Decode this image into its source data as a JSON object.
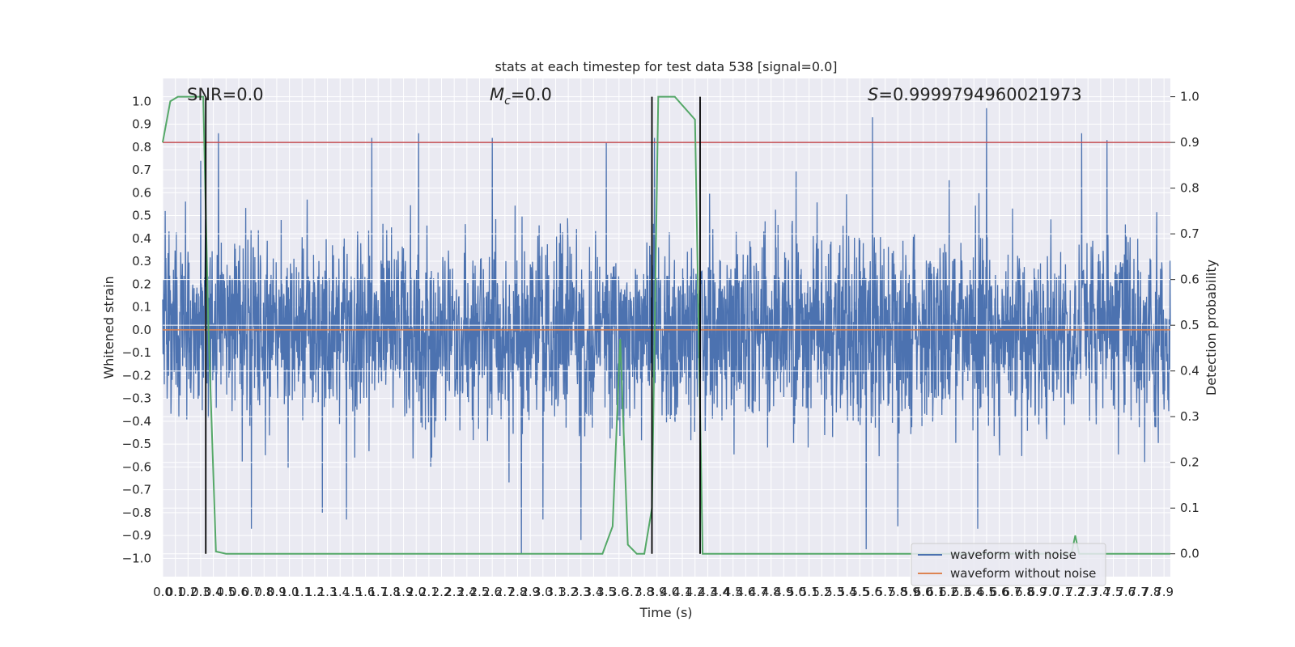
{
  "chart_data": {
    "type": "line",
    "title": "stats at each timestep for test data 538 [signal=0.0]",
    "xlabel": "Time (s)",
    "ylabel": "Whitened strain",
    "y2label": "Detection probability",
    "xlim": [
      0.0,
      7.95
    ],
    "ylim": [
      -1.08,
      1.1
    ],
    "y2lim": [
      -0.05,
      1.04
    ],
    "x_ticks": [
      0.0,
      0.1,
      0.2,
      0.3,
      0.4,
      0.5,
      0.6,
      0.7,
      0.8,
      0.9,
      1.0,
      1.1,
      1.2,
      1.3,
      1.4,
      1.5,
      1.6,
      1.7,
      1.8,
      1.9,
      2.0,
      2.1,
      2.2,
      2.3,
      2.4,
      2.5,
      2.6,
      2.7,
      2.8,
      2.9,
      3.0,
      3.1,
      3.2,
      3.3,
      3.4,
      3.5,
      3.6,
      3.7,
      3.8,
      3.9,
      4.0,
      4.1,
      4.2,
      4.3,
      4.4,
      4.5,
      4.6,
      4.7,
      4.8,
      4.9,
      5.0,
      5.1,
      5.2,
      5.3,
      5.4,
      5.5,
      5.6,
      5.7,
      5.8,
      5.9,
      6.0,
      6.1,
      6.2,
      6.3,
      6.4,
      6.5,
      6.6,
      6.7,
      6.8,
      6.9,
      7.0,
      7.1,
      7.2,
      7.3,
      7.4,
      7.5,
      7.6,
      7.7,
      7.8,
      7.9
    ],
    "x_tick_labels": [
      "0.0",
      "0.1",
      "0.2",
      "0.3",
      "0.4",
      "0.5",
      "0.6",
      "0.7",
      "0.8",
      "0.9",
      "1.0",
      "1.1",
      "1.2",
      "1.3",
      "1.4",
      "1.5",
      "1.6",
      "1.7",
      "1.8",
      "1.9",
      "2.0",
      "2.1",
      "2.2",
      "2.3",
      "2.4",
      "2.5",
      "2.6",
      "2.7",
      "2.8",
      "2.9",
      "3.0",
      "3.1",
      "3.2",
      "3.3",
      "3.4",
      "3.5",
      "3.6",
      "3.7",
      "3.8",
      "3.9",
      "4.0",
      "4.1",
      "4.2",
      "4.3",
      "4.4",
      "4.5",
      "4.6",
      "4.7",
      "4.8",
      "4.9",
      "5.0",
      "5.1",
      "5.2",
      "5.3",
      "5.4",
      "5.5",
      "5.6",
      "5.7",
      "5.8",
      "5.9",
      "6.0",
      "6.1",
      "6.2",
      "6.3",
      "6.4",
      "6.5",
      "6.6",
      "6.7",
      "6.8",
      "6.9",
      "7.0",
      "7.1",
      "7.2",
      "7.3",
      "7.4",
      "7.5",
      "7.6",
      "7.7",
      "7.8",
      "7.9"
    ],
    "y_ticks": [
      1.0,
      0.9,
      0.8,
      0.7,
      0.6,
      0.5,
      0.4,
      0.3,
      0.2,
      0.1,
      0.0,
      -0.1,
      -0.2,
      -0.3,
      -0.4,
      -0.5,
      -0.6,
      -0.7,
      -0.8,
      -0.9,
      -1.0
    ],
    "y_tick_labels": [
      "1.0",
      "0.9",
      "0.8",
      "0.7",
      "0.6",
      "0.5",
      "0.4",
      "0.3",
      "0.2",
      "0.1",
      "0.0",
      "−0.1",
      "−0.2",
      "−0.3",
      "−0.4",
      "−0.5",
      "−0.6",
      "−0.7",
      "−0.8",
      "−0.9",
      "−1.0"
    ],
    "y2_ticks": [
      1.0,
      0.9,
      0.8,
      0.7,
      0.6,
      0.5,
      0.4,
      0.3,
      0.2,
      0.1,
      0.0
    ],
    "y2_tick_labels": [
      "1.0",
      "0.9",
      "0.8",
      "0.7",
      "0.6",
      "0.5",
      "0.4",
      "0.3",
      "0.2",
      "0.1",
      "0.0"
    ],
    "grid": true,
    "legend_placement": "lower-right",
    "annotations": {
      "snr": "SNR=0.0",
      "mc_symbol": "M",
      "mc_sub": "c",
      "mc_value": "=0.0",
      "s_symbol": "S",
      "s_value": "=0.9999794960021973"
    },
    "threshold_line": {
      "axis": "y2",
      "value": 0.9,
      "color": "#c44e52"
    },
    "vertical_markers": {
      "x": [
        0.34,
        3.86,
        4.24
      ],
      "color": "#000000"
    },
    "series": [
      {
        "name": "waveform with noise",
        "axis": "y",
        "color": "#4c72b0",
        "dense_noise": {
          "sigma": 0.2,
          "samples_per_second": 400,
          "t_start": 0.0,
          "t_end": 7.95
        },
        "spikes": [
          [
            0.02,
            0.52
          ],
          [
            0.3,
            0.74
          ],
          [
            0.44,
            0.86
          ],
          [
            1.65,
            0.84
          ],
          [
            2.02,
            0.86
          ],
          [
            2.6,
            0.84
          ],
          [
            3.5,
            0.82
          ],
          [
            3.88,
            0.84
          ],
          [
            5.6,
            0.93
          ],
          [
            6.5,
            0.97
          ],
          [
            7.25,
            0.86
          ],
          [
            7.45,
            0.83
          ],
          [
            5.55,
            -0.96
          ],
          [
            6.43,
            -0.87
          ],
          [
            2.83,
            -0.98
          ],
          [
            3.3,
            -0.92
          ],
          [
            0.7,
            -0.87
          ],
          [
            1.45,
            -0.83
          ],
          [
            1.26,
            -0.8
          ],
          [
            3.0,
            -0.83
          ],
          [
            5.8,
            -0.86
          ]
        ]
      },
      {
        "name": "waveform without noise",
        "axis": "y",
        "color": "#dd8452",
        "values": [
          0.0,
          0.0
        ]
      },
      {
        "name": "",
        "axis": "y2",
        "color": "#55a868",
        "x": [
          0.0,
          0.06,
          0.12,
          0.2,
          0.32,
          0.36,
          0.42,
          0.5,
          0.6,
          1.0,
          2.0,
          3.0,
          3.47,
          3.55,
          3.61,
          3.67,
          3.74,
          3.8,
          3.86,
          3.91,
          4.04,
          4.2,
          4.26,
          4.3,
          4.36,
          4.5,
          5.5,
          6.5,
          7.0,
          7.17,
          7.2,
          7.23,
          7.3,
          7.95
        ],
        "y": [
          0.9,
          0.99,
          1.0,
          1.0,
          1.0,
          0.5,
          0.005,
          0.0,
          0.0,
          0.0,
          0.0,
          0.0,
          0.0,
          0.06,
          0.47,
          0.02,
          0.0,
          0.0,
          0.1,
          1.0,
          1.0,
          0.95,
          0.0,
          0.0,
          0.0,
          0.0,
          0.0,
          0.0,
          0.0,
          0.0,
          0.04,
          0.0,
          0.0,
          0.0
        ]
      }
    ]
  }
}
